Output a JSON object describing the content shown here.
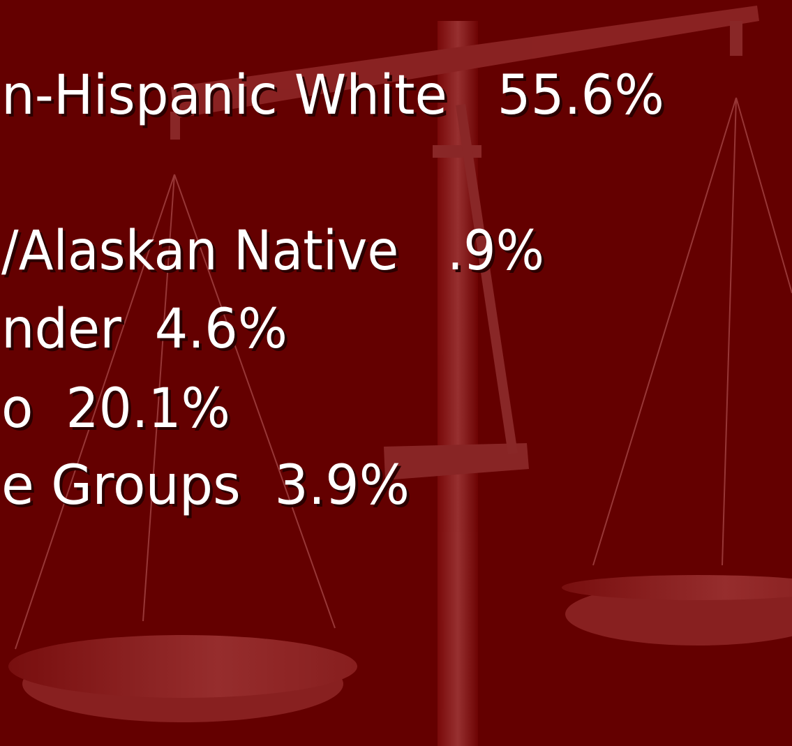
{
  "lines": [
    "n-Hispanic White   55.6%",
    "/Alaskan Native   .9%",
    "nder  4.6%",
    "o  20.1%",
    "e Groups  3.9%"
  ]
}
